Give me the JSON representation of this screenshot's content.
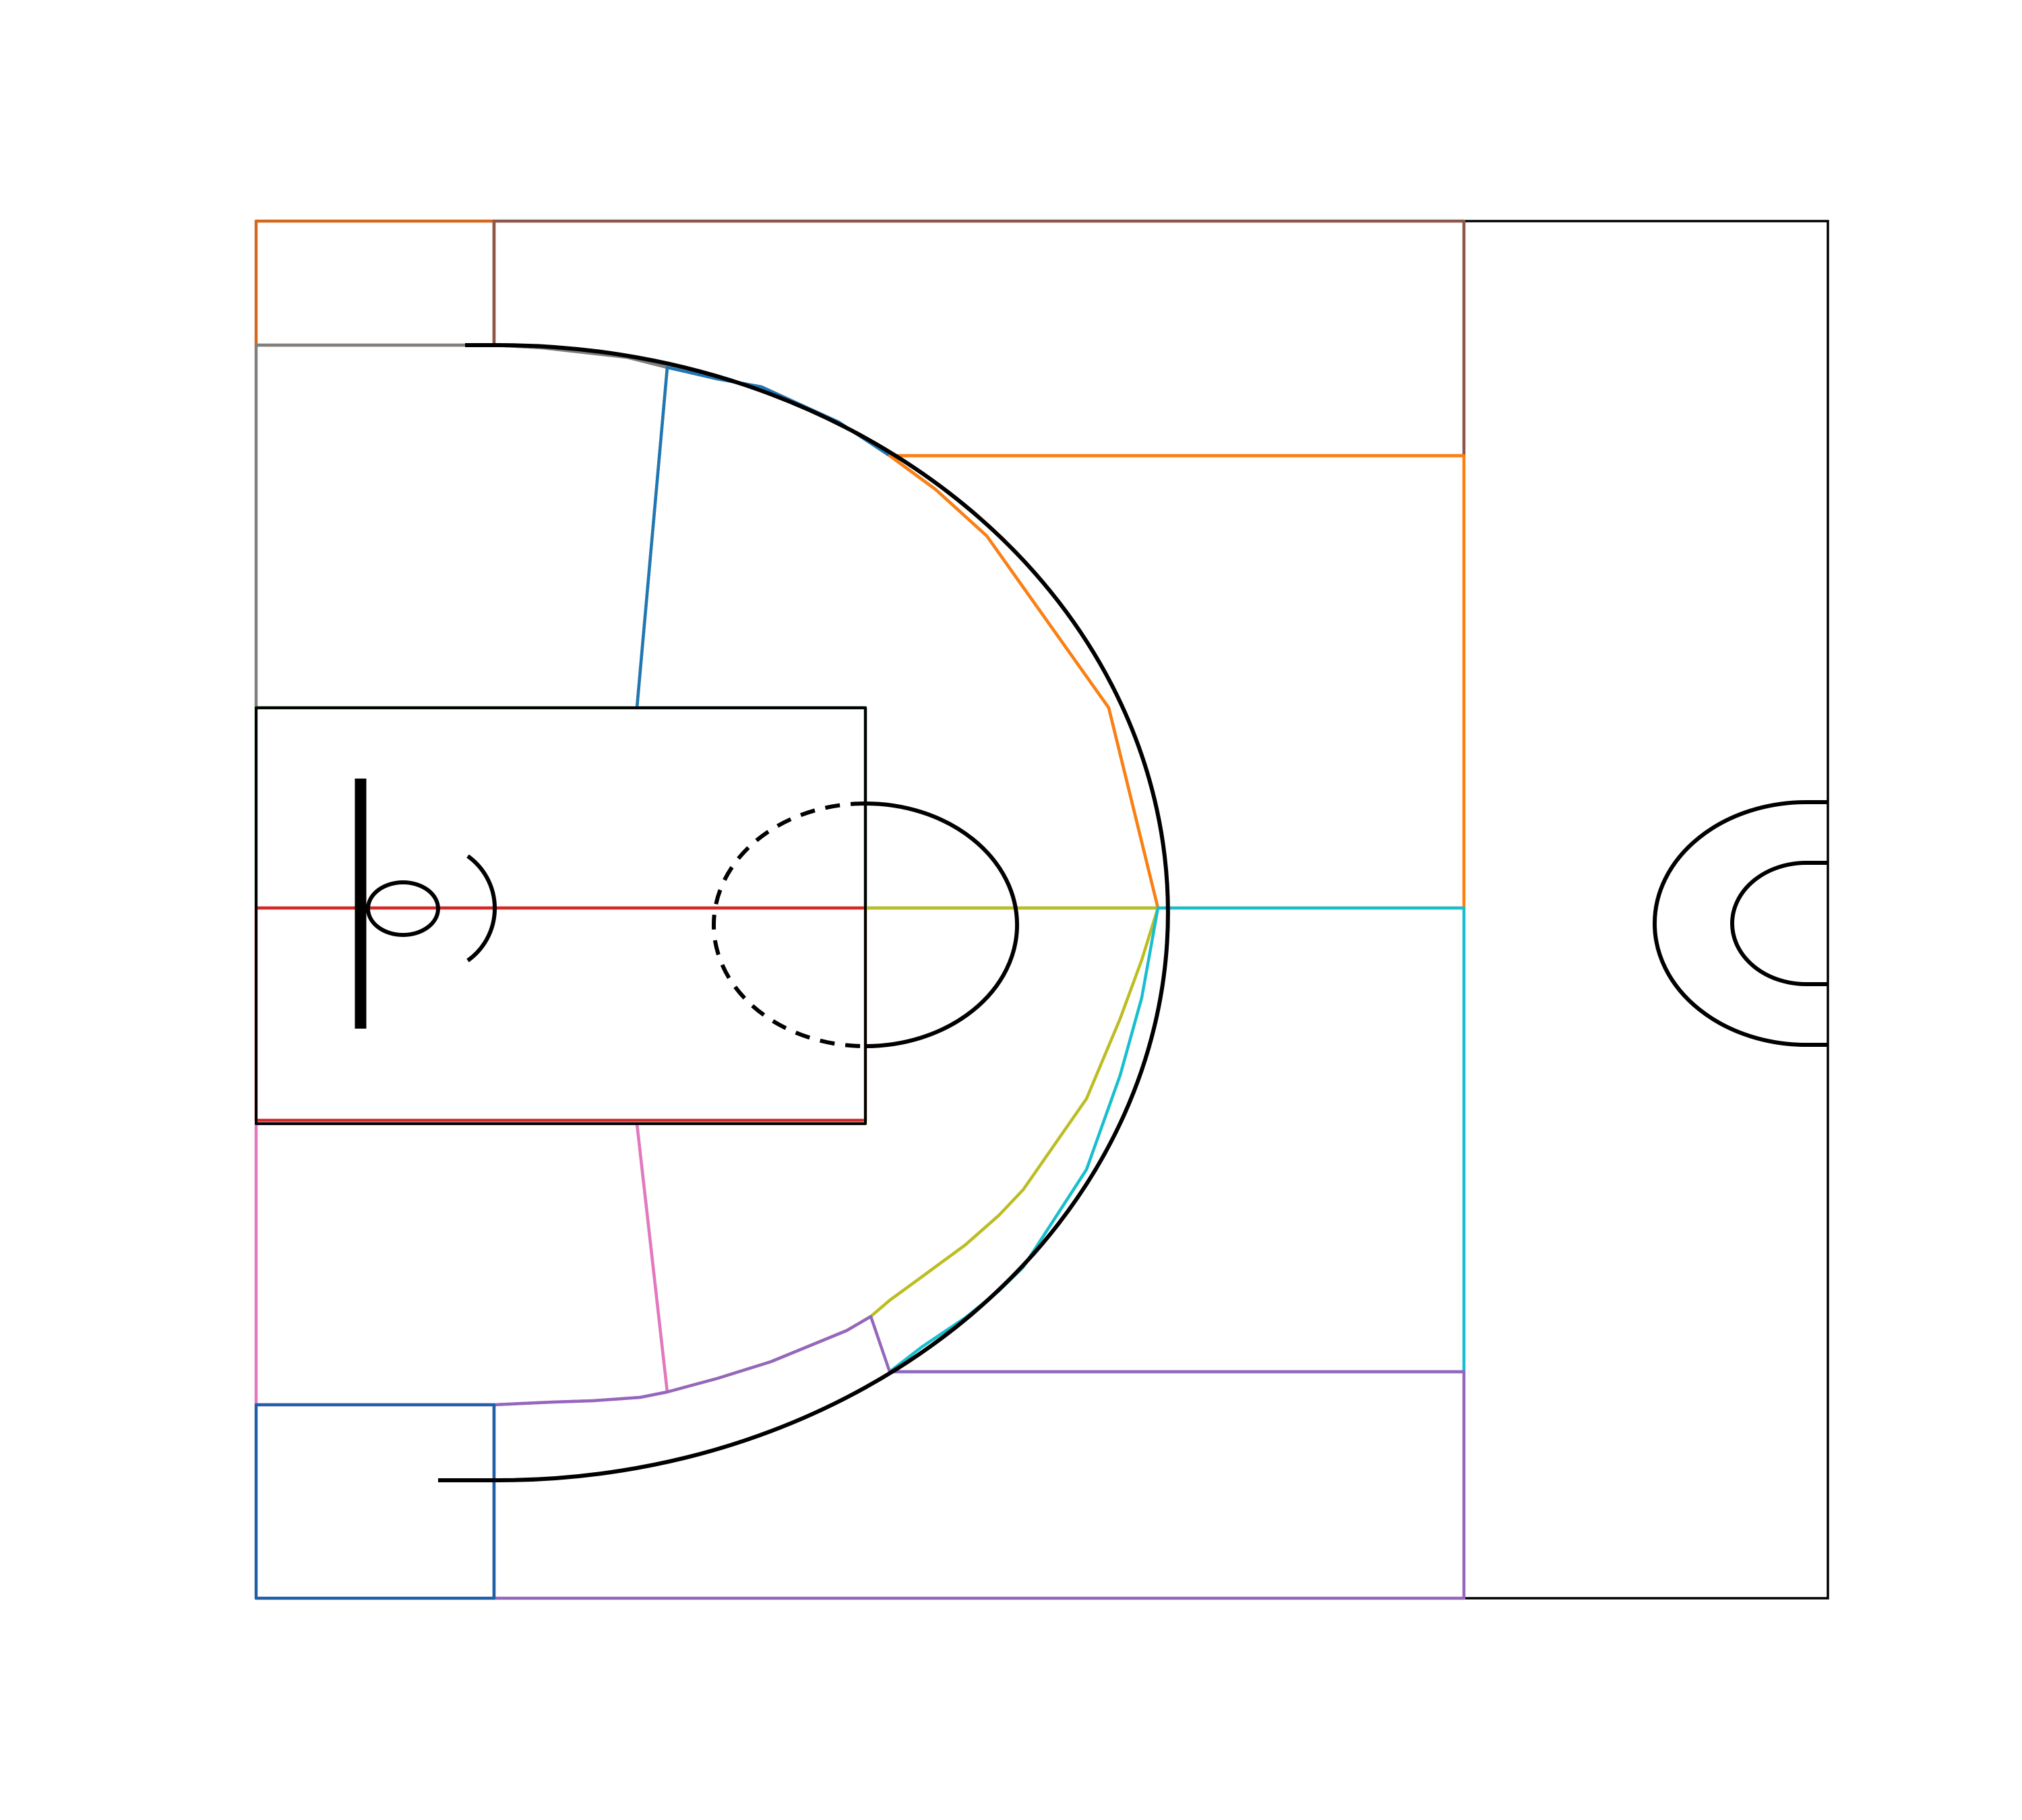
{
  "figure": {
    "type": "basketball half-court shot-zone diagram"
  },
  "palette": {
    "court_lines": "#000000",
    "background": "#ffffff"
  },
  "court_elements": [
    "boundary",
    "backboard",
    "rim",
    "restricted-area-arc",
    "paint",
    "free-throw-circle-solid",
    "free-throw-circle-dashed",
    "three-point-line",
    "center-circle-outer",
    "center-circle-inner"
  ],
  "zones": [
    {
      "id": "left-corner-three",
      "color": "#d2691e"
    },
    {
      "id": "left-wing-three",
      "color": "#8c564b"
    },
    {
      "id": "left-baseline-midrange",
      "color": "#7f7f7f"
    },
    {
      "id": "left-elbow-midrange",
      "color": "#1f77b4"
    },
    {
      "id": "top-left-three",
      "color": "#ff7f0e"
    },
    {
      "id": "paint-left",
      "color": "#2ca02c"
    },
    {
      "id": "paint-center",
      "color": "#d62728"
    },
    {
      "id": "paint-right",
      "color": "#bcbd22"
    },
    {
      "id": "right-baseline-midrange",
      "color": "#e377c2"
    },
    {
      "id": "top-right-three",
      "color": "#17becf"
    },
    {
      "id": "right-wing-three",
      "color": "#9467bd"
    },
    {
      "id": "right-corner-three",
      "color": "#1f5fa8"
    }
  ]
}
